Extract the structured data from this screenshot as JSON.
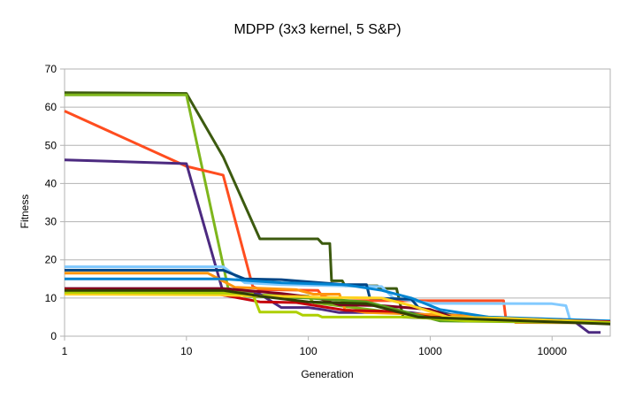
{
  "chart_data": {
    "type": "line",
    "title": "MDPP (3x3 kernel, 5 S&P)",
    "xlabel": "Generation",
    "ylabel": "Fitness",
    "xscale": "log",
    "xlim": [
      1,
      30000
    ],
    "ylim": [
      0,
      70
    ],
    "grid": "horizontal",
    "legend": "none",
    "x_ticks": [
      1,
      10,
      100,
      1000,
      10000
    ],
    "x_tick_labels": [
      "1",
      "10",
      "100",
      "1000",
      "10000"
    ],
    "y_ticks": [
      0,
      10,
      20,
      30,
      40,
      50,
      60,
      70
    ],
    "y_tick_labels": [
      "0",
      "10",
      "20",
      "30",
      "40",
      "50",
      "60",
      "70"
    ],
    "series": [
      {
        "color": "#3c5a0f",
        "points": [
          [
            1,
            63.8
          ],
          [
            10,
            63.6
          ],
          [
            20,
            47
          ],
          [
            40,
            25.5
          ],
          [
            120,
            25.5
          ],
          [
            130,
            24.3
          ],
          [
            150,
            24.3
          ],
          [
            155,
            14.5
          ],
          [
            190,
            14.5
          ],
          [
            200,
            13.2
          ],
          [
            370,
            13.2
          ],
          [
            380,
            12.5
          ],
          [
            530,
            12.5
          ],
          [
            600,
            5
          ],
          [
            2000,
            4.3
          ],
          [
            30000,
            3.6
          ]
        ]
      },
      {
        "color": "#7eb61c",
        "points": [
          [
            1,
            63.2
          ],
          [
            10,
            63.2
          ],
          [
            22,
            12.5
          ],
          [
            40,
            10.8
          ],
          [
            100,
            10.5
          ],
          [
            110,
            8.8
          ],
          [
            1000,
            5
          ],
          [
            30000,
            3.8
          ]
        ]
      },
      {
        "color": "#ff4d1f",
        "points": [
          [
            1,
            59
          ],
          [
            10,
            44.5
          ],
          [
            20,
            42.2
          ],
          [
            35,
            13
          ],
          [
            40,
            12.2
          ],
          [
            120,
            12
          ],
          [
            130,
            10.5
          ],
          [
            200,
            9.3
          ],
          [
            4000,
            9.3
          ],
          [
            4200,
            4
          ],
          [
            30000,
            3.6
          ]
        ]
      },
      {
        "color": "#4c2a80",
        "points": [
          [
            1,
            46.2
          ],
          [
            10,
            45.2
          ],
          [
            20,
            11.5
          ],
          [
            40,
            11
          ],
          [
            60,
            7.5
          ],
          [
            100,
            7.5
          ],
          [
            130,
            7
          ],
          [
            180,
            6.2
          ],
          [
            700,
            6.2
          ],
          [
            2000,
            4
          ],
          [
            15000,
            4
          ],
          [
            20000,
            1
          ],
          [
            25000,
            1
          ]
        ]
      },
      {
        "color": "#83caff",
        "points": [
          [
            1,
            18.2
          ],
          [
            20,
            18.2
          ],
          [
            30,
            14
          ],
          [
            60,
            13.5
          ],
          [
            400,
            13
          ],
          [
            500,
            10
          ],
          [
            1000,
            8.6
          ],
          [
            10000,
            8.5
          ],
          [
            13000,
            8
          ],
          [
            14000,
            4.4
          ],
          [
            30000,
            3.7
          ]
        ]
      },
      {
        "color": "#004586",
        "points": [
          [
            1,
            17.3
          ],
          [
            20,
            17.3
          ],
          [
            30,
            15
          ],
          [
            60,
            14.8
          ],
          [
            200,
            13.5
          ],
          [
            300,
            13.5
          ],
          [
            320,
            10
          ],
          [
            700,
            9.7
          ],
          [
            800,
            7.5
          ],
          [
            1500,
            5.6
          ],
          [
            3000,
            4.9
          ],
          [
            30000,
            3.5
          ]
        ]
      },
      {
        "color": "#ff950e",
        "points": [
          [
            1,
            16.5
          ],
          [
            15,
            16.5
          ],
          [
            25,
            12.8
          ],
          [
            80,
            12.2
          ],
          [
            110,
            11
          ],
          [
            180,
            11
          ],
          [
            200,
            7
          ],
          [
            300,
            6.2
          ],
          [
            1500,
            5.5
          ],
          [
            3000,
            5
          ],
          [
            4500,
            4.8
          ],
          [
            5000,
            3.6
          ],
          [
            30000,
            3.5
          ]
        ]
      },
      {
        "color": "#0084d1",
        "points": [
          [
            1,
            15
          ],
          [
            20,
            15
          ],
          [
            60,
            14
          ],
          [
            200,
            13.5
          ],
          [
            400,
            12
          ],
          [
            700,
            10
          ],
          [
            1200,
            7
          ],
          [
            3000,
            5
          ],
          [
            30000,
            4
          ]
        ]
      },
      {
        "color": "#7e0021",
        "points": [
          [
            1,
            12.5
          ],
          [
            20,
            12.5
          ],
          [
            60,
            11.2
          ],
          [
            120,
            10
          ],
          [
            180,
            8.2
          ],
          [
            400,
            8
          ],
          [
            1000,
            7
          ],
          [
            1500,
            5
          ],
          [
            6000,
            4.5
          ],
          [
            30000,
            3.6
          ]
        ]
      },
      {
        "color": "#c5000b",
        "points": [
          [
            1,
            12.2
          ],
          [
            15,
            11.5
          ],
          [
            40,
            9
          ],
          [
            80,
            8.8
          ],
          [
            200,
            6.8
          ],
          [
            500,
            6.5
          ],
          [
            1000,
            5
          ],
          [
            30000,
            3.8
          ]
        ]
      },
      {
        "color": "#579d1c",
        "points": [
          [
            1,
            11.8
          ],
          [
            20,
            11.8
          ],
          [
            30,
            10.5
          ],
          [
            100,
            10
          ],
          [
            300,
            9
          ],
          [
            600,
            6.5
          ],
          [
            1200,
            4
          ],
          [
            30000,
            3.5
          ]
        ]
      },
      {
        "color": "#ffd320",
        "points": [
          [
            1,
            11
          ],
          [
            20,
            10.8
          ],
          [
            40,
            10.5
          ],
          [
            80,
            10.4
          ],
          [
            120,
            10.2
          ],
          [
            400,
            10
          ],
          [
            700,
            8
          ],
          [
            1400,
            5
          ],
          [
            4000,
            4.7
          ],
          [
            30000,
            3.6
          ]
        ]
      },
      {
        "color": "#aecf00",
        "points": [
          [
            1,
            11.5
          ],
          [
            20,
            11.3
          ],
          [
            35,
            11
          ],
          [
            40,
            6.3
          ],
          [
            80,
            6.3
          ],
          [
            90,
            5.5
          ],
          [
            120,
            5.5
          ],
          [
            130,
            5
          ],
          [
            700,
            5
          ],
          [
            2000,
            4
          ],
          [
            30000,
            3.6
          ]
        ]
      },
      {
        "color": "#314004",
        "points": [
          [
            1,
            12
          ],
          [
            20,
            12
          ],
          [
            40,
            10.5
          ],
          [
            100,
            9
          ],
          [
            300,
            8.5
          ],
          [
            800,
            5
          ],
          [
            30000,
            3.2
          ]
        ]
      }
    ]
  }
}
